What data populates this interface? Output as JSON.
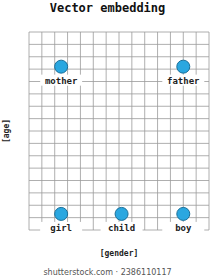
{
  "chart_data": {
    "type": "scatter",
    "title": "Vector embedding",
    "x_label": "[gender]",
    "y_label": "[age]",
    "labels": [
      "mother",
      "father",
      "girl",
      "child",
      "boy"
    ],
    "x": [
      2.5,
      12,
      2.5,
      7.2,
      12
    ],
    "values": [
      13.2,
      13.2,
      1.3,
      1.3,
      1.3
    ],
    "color": "#2aa7e0",
    "marker": "circle",
    "xlim": [
      0,
      14
    ],
    "ylim": [
      0,
      16
    ],
    "xticks": [
      0,
      1,
      2,
      3,
      4,
      5,
      6,
      7,
      8,
      9,
      10,
      11,
      12,
      13,
      14
    ],
    "yticks": [
      0,
      1,
      2,
      3,
      4,
      5,
      6,
      7,
      8,
      9,
      10,
      11,
      12,
      13,
      14,
      15,
      16
    ],
    "grid": true,
    "tick_labels": false,
    "watermark": "shutterstock.com · 2386110117"
  }
}
